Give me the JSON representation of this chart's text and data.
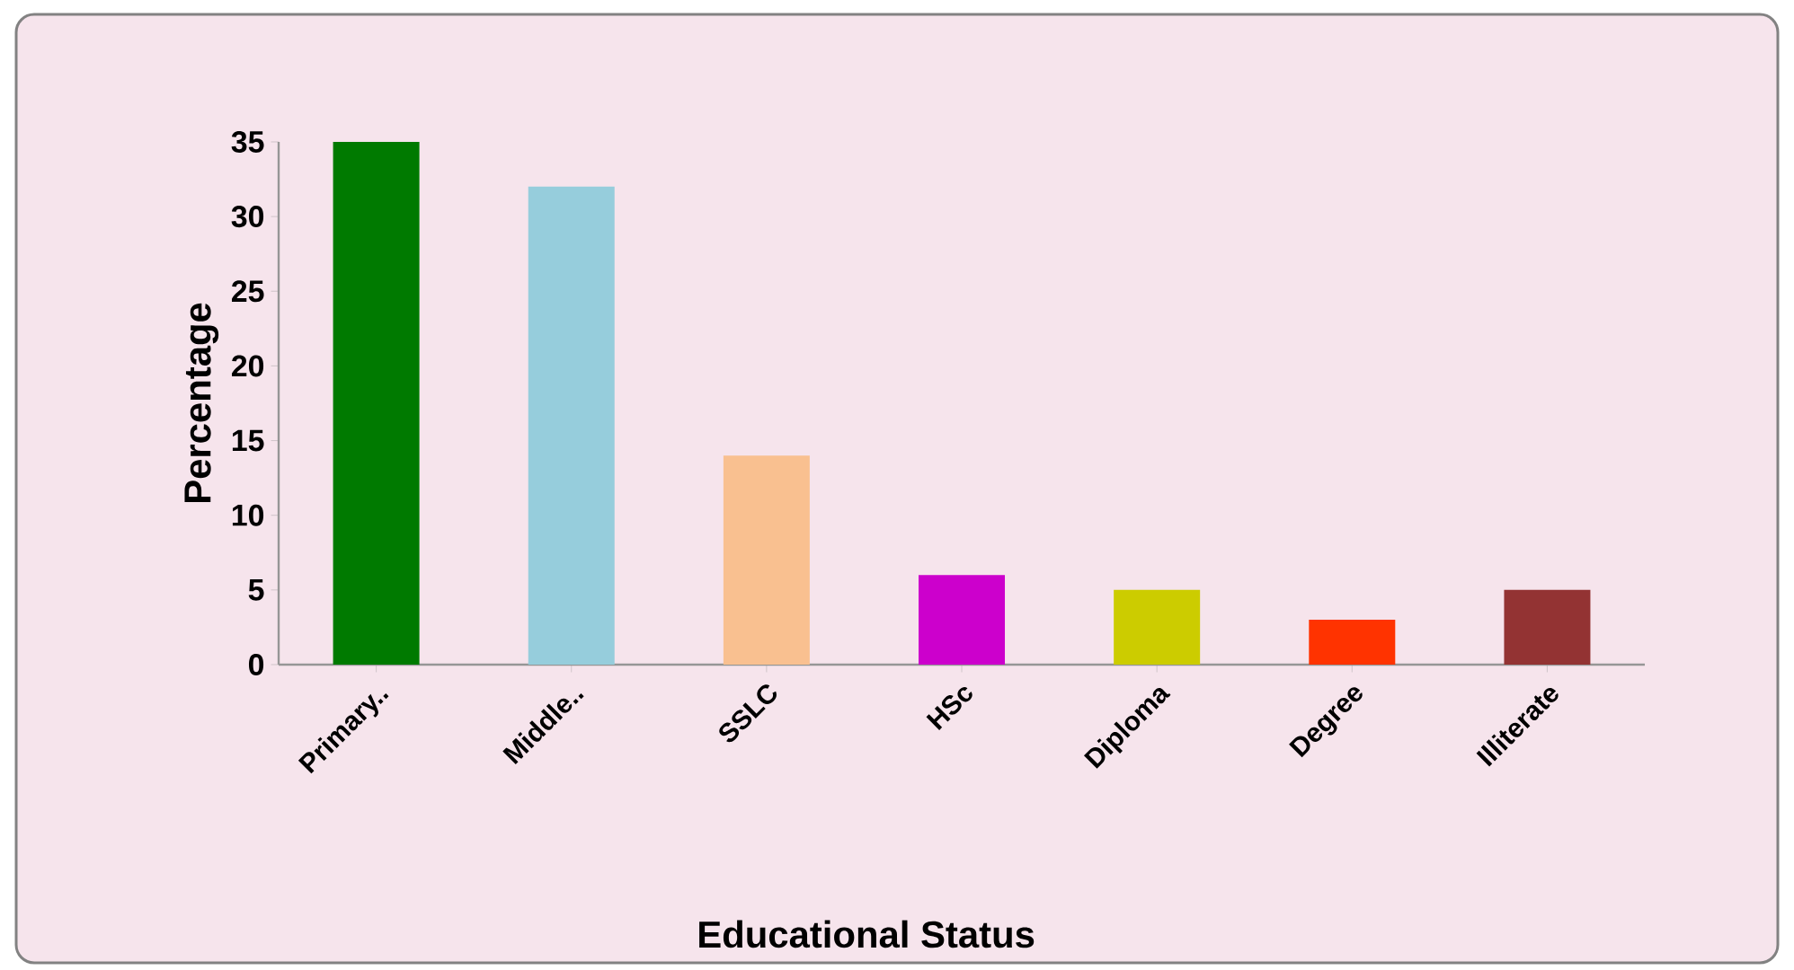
{
  "chart_data": {
    "type": "bar",
    "xlabel": "Educational  Status",
    "ylabel": "Percentage",
    "categories": [
      "Primary..",
      "Middle..",
      "SSLC",
      "HSc",
      "Diploma",
      "Degree",
      "Illiterate"
    ],
    "values": [
      35,
      32,
      14,
      6,
      5,
      3,
      5
    ],
    "colors": [
      "#007a00",
      "#96cddc",
      "#f9c090",
      "#cc00cc",
      "#cccc00",
      "#ff3300",
      "#933333"
    ],
    "ylim": [
      0,
      35
    ],
    "yticks": [
      0,
      5,
      10,
      15,
      20,
      25,
      30,
      35
    ]
  }
}
